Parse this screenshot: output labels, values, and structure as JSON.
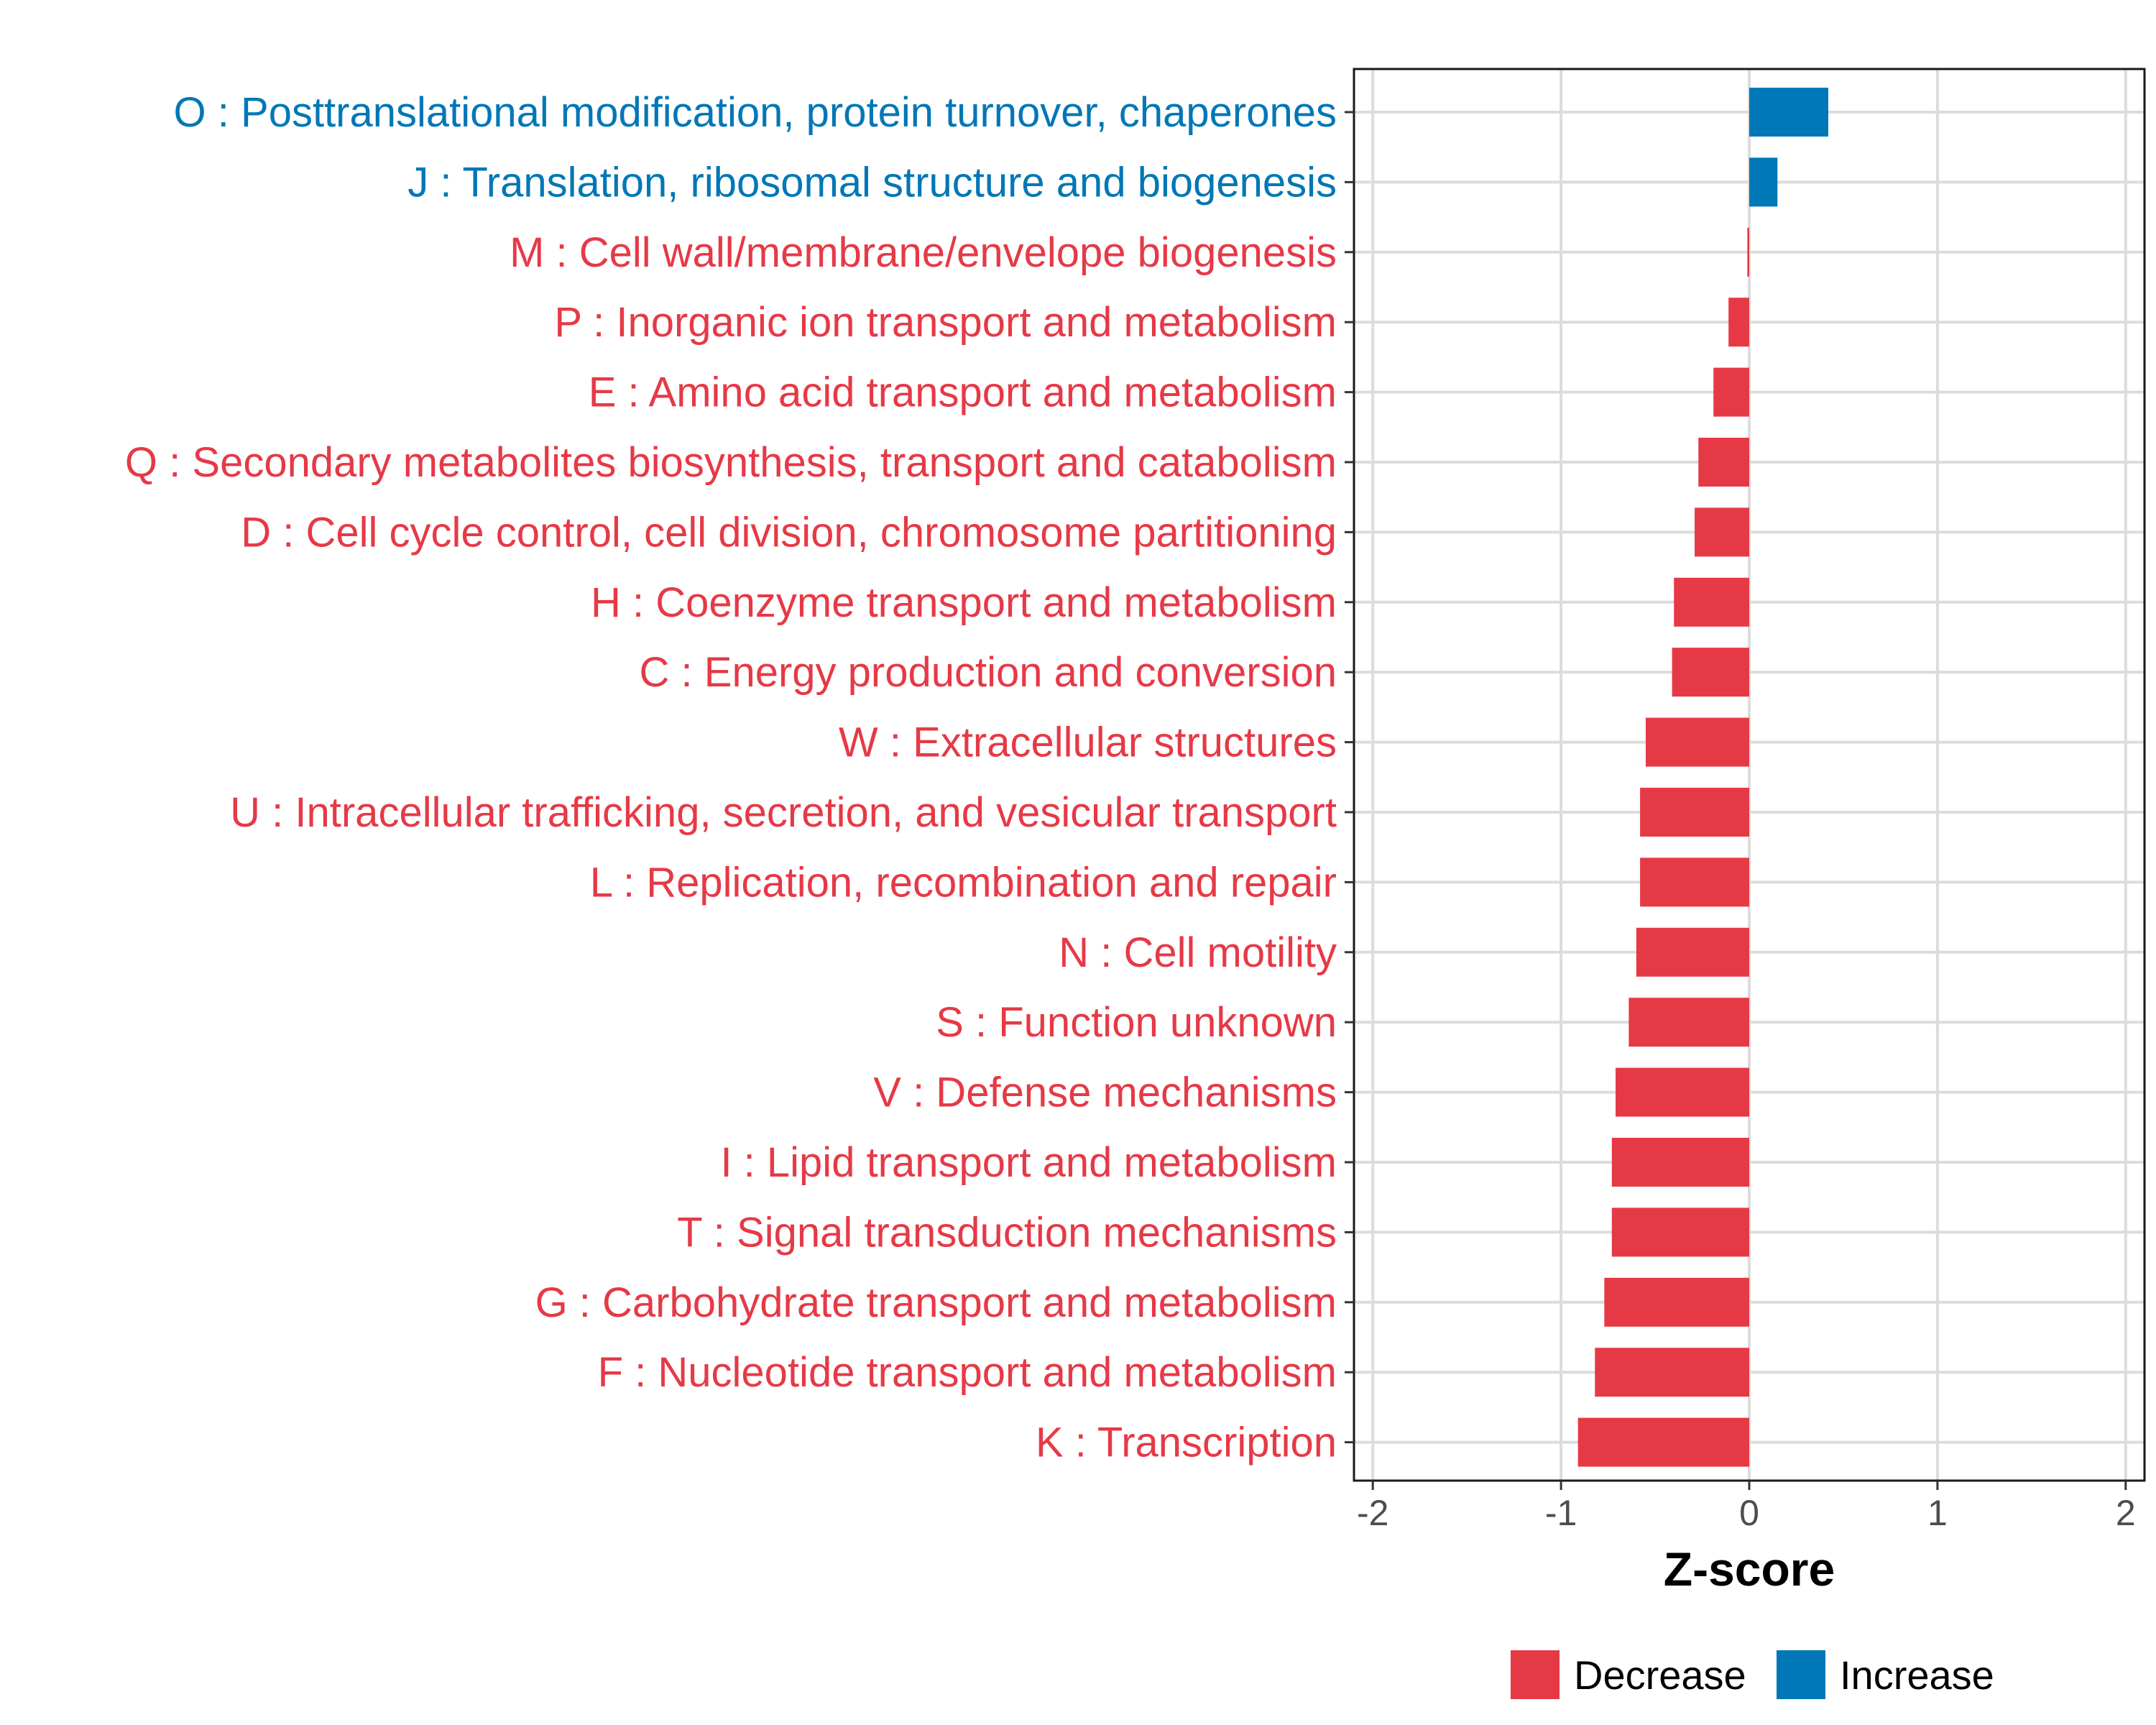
{
  "chart_data": {
    "type": "bar",
    "orientation": "horizontal",
    "title": "",
    "xlabel": "Z-score",
    "ylabel": "",
    "xlim": [
      -2.1,
      2.1
    ],
    "xticks": [
      -2,
      -1,
      0,
      1,
      2
    ],
    "xtick_labels": [
      "-2",
      "-1",
      "0",
      "1",
      "2"
    ],
    "grid": true,
    "legend_position": "bottom",
    "colors": {
      "Decrease": "#e63946",
      "Increase": "#0077b6"
    },
    "legend": [
      {
        "name": "Decrease",
        "color": "#e63946"
      },
      {
        "name": "Increase",
        "color": "#0077b6"
      }
    ],
    "categories": [
      "O : Posttranslational modification, protein turnover, chaperones",
      "J : Translation, ribosomal structure and biogenesis",
      "M : Cell wall/membrane/envelope biogenesis",
      "P : Inorganic ion transport and metabolism",
      "E : Amino acid transport and metabolism",
      "Q : Secondary metabolites biosynthesis, transport and catabolism",
      "D : Cell cycle control, cell division, chromosome partitioning",
      "H : Coenzyme transport and metabolism",
      "C : Energy production and conversion",
      "W : Extracellular structures",
      "U : Intracellular trafficking, secretion, and vesicular transport",
      "L : Replication, recombination and repair",
      "N : Cell motility",
      "S : Function unknown",
      "V : Defense mechanisms",
      "I : Lipid transport and metabolism",
      "T : Signal transduction mechanisms",
      "G : Carbohydrate transport and metabolism",
      "F : Nucleotide transport and metabolism",
      "K : Transcription"
    ],
    "values": [
      0.42,
      0.15,
      -0.01,
      -0.11,
      -0.19,
      -0.27,
      -0.29,
      -0.4,
      -0.41,
      -0.55,
      -0.58,
      -0.58,
      -0.6,
      -0.64,
      -0.71,
      -0.73,
      -0.73,
      -0.77,
      -0.82,
      -0.91
    ],
    "groups": [
      "Increase",
      "Increase",
      "Decrease",
      "Decrease",
      "Decrease",
      "Decrease",
      "Decrease",
      "Decrease",
      "Decrease",
      "Decrease",
      "Decrease",
      "Decrease",
      "Decrease",
      "Decrease",
      "Decrease",
      "Decrease",
      "Decrease",
      "Decrease",
      "Decrease",
      "Decrease"
    ]
  }
}
